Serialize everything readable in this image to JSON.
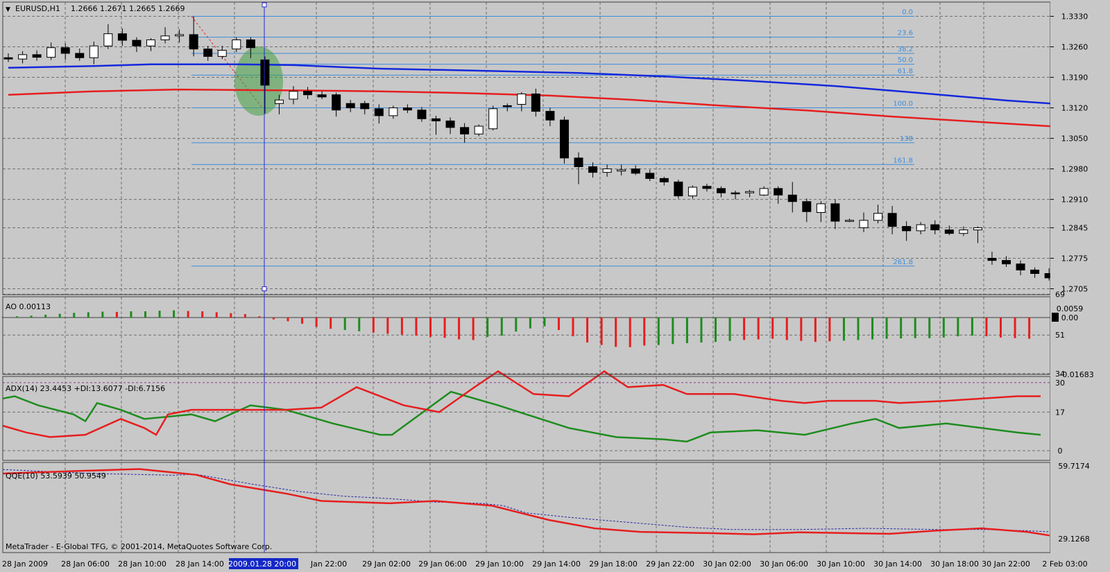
{
  "header": {
    "symbol": "EURUSD,H1",
    "ohlc": "1.2666 1.2671 1.2665 1.2669"
  },
  "colors": {
    "bg": "#c8c8c8",
    "grid": "#6e6e6e",
    "bull": "#ffffff",
    "bear": "#000000",
    "ma_slow": "#1428dc",
    "ma_fast": "#e61e1e",
    "fib": "#3c8cdc",
    "ao_up": "#1e8c1e",
    "ao_down": "#e61e1e",
    "adx_di_plus": "#1e8c1e",
    "adx_di_minus": "#e61e1e",
    "cursor": "#2828c8",
    "highlight": "#46a046"
  },
  "main": {
    "y_ticks": [
      "1.3330",
      "1.3260",
      "1.3190",
      "1.3120",
      "1.3050",
      "1.2980",
      "1.2910",
      "1.2845",
      "1.2775",
      "1.2705"
    ],
    "fib_labels": [
      "0.0",
      "23.6",
      "38.2",
      "50.0",
      "61.8",
      "100.0",
      "138",
      "161.8",
      "261.8"
    ],
    "candles": [
      [
        1.3235,
        1.3245,
        1.3225,
        1.3232
      ],
      [
        1.3232,
        1.325,
        1.3222,
        1.3242
      ],
      [
        1.3242,
        1.3252,
        1.3228,
        1.3236
      ],
      [
        1.3236,
        1.327,
        1.323,
        1.3258
      ],
      [
        1.3258,
        1.3268,
        1.323,
        1.3245
      ],
      [
        1.3245,
        1.3256,
        1.3228,
        1.3235
      ],
      [
        1.3235,
        1.3272,
        1.322,
        1.3262
      ],
      [
        1.3262,
        1.3312,
        1.3255,
        1.329
      ],
      [
        1.329,
        1.3302,
        1.3262,
        1.3275
      ],
      [
        1.3275,
        1.3282,
        1.3248,
        1.3262
      ],
      [
        1.3262,
        1.328,
        1.325,
        1.3276
      ],
      [
        1.3276,
        1.3305,
        1.3268,
        1.3285
      ],
      [
        1.3285,
        1.33,
        1.327,
        1.3288
      ],
      [
        1.3288,
        1.333,
        1.3238,
        1.3255
      ],
      [
        1.3255,
        1.3262,
        1.3228,
        1.3238
      ],
      [
        1.3238,
        1.3262,
        1.3232,
        1.3252
      ],
      [
        1.3255,
        1.3282,
        1.3248,
        1.3276
      ],
      [
        1.3276,
        1.3282,
        1.3234,
        1.3258
      ],
      [
        1.323,
        1.3238,
        1.3107,
        1.3172
      ],
      [
        1.313,
        1.315,
        1.3105,
        1.3138
      ],
      [
        1.314,
        1.317,
        1.3128,
        1.3158
      ],
      [
        1.3158,
        1.3168,
        1.314,
        1.315
      ],
      [
        1.315,
        1.3158,
        1.314,
        1.3145
      ],
      [
        1.315,
        1.3155,
        1.31,
        1.3115
      ],
      [
        1.313,
        1.3138,
        1.311,
        1.312
      ],
      [
        1.313,
        1.3136,
        1.3105,
        1.3118
      ],
      [
        1.3118,
        1.3128,
        1.3084,
        1.3102
      ],
      [
        1.3102,
        1.3125,
        1.3095,
        1.312
      ],
      [
        1.312,
        1.3128,
        1.3108,
        1.3115
      ],
      [
        1.3115,
        1.3122,
        1.3088,
        1.3095
      ],
      [
        1.3095,
        1.3102,
        1.3058,
        1.309
      ],
      [
        1.309,
        1.3098,
        1.306,
        1.3075
      ],
      [
        1.3075,
        1.3085,
        1.304,
        1.306
      ],
      [
        1.306,
        1.3082,
        1.3055,
        1.3078
      ],
      [
        1.3072,
        1.3125,
        1.3068,
        1.3118
      ],
      [
        1.3125,
        1.313,
        1.3112,
        1.3124
      ],
      [
        1.3128,
        1.3156,
        1.3112,
        1.3152
      ],
      [
        1.3152,
        1.3164,
        1.31,
        1.3112
      ],
      [
        1.3112,
        1.312,
        1.3078,
        1.3092
      ],
      [
        1.3092,
        1.31,
        1.2992,
        1.3005
      ],
      [
        1.3005,
        1.3018,
        1.2945,
        1.2985
      ],
      [
        1.2985,
        1.2995,
        1.296,
        1.2972
      ],
      [
        1.2972,
        1.299,
        1.2962,
        1.298
      ],
      [
        1.2975,
        1.299,
        1.2965,
        1.2978
      ],
      [
        1.298,
        1.2988,
        1.2966,
        1.297
      ],
      [
        1.297,
        1.2978,
        1.2952,
        1.2958
      ],
      [
        1.2958,
        1.2962,
        1.2942,
        1.295
      ],
      [
        1.295,
        1.2955,
        1.2912,
        1.2918
      ],
      [
        1.2918,
        1.2942,
        1.2912,
        1.2938
      ],
      [
        1.294,
        1.2946,
        1.2928,
        1.2935
      ],
      [
        1.2935,
        1.294,
        1.2915,
        1.2925
      ],
      [
        1.2925,
        1.293,
        1.291,
        1.2924
      ],
      [
        1.2925,
        1.2932,
        1.2915,
        1.2928
      ],
      [
        1.292,
        1.294,
        1.2918,
        1.2935
      ],
      [
        1.2935,
        1.294,
        1.29,
        1.292
      ],
      [
        1.292,
        1.295,
        1.288,
        1.2905
      ],
      [
        1.2905,
        1.2912,
        1.2858,
        1.2882
      ],
      [
        1.288,
        1.2906,
        1.2858,
        1.29
      ],
      [
        1.29,
        1.291,
        1.2842,
        1.286
      ],
      [
        1.286,
        1.2866,
        1.2858,
        1.2862
      ],
      [
        1.2845,
        1.288,
        1.2835,
        1.2862
      ],
      [
        1.2862,
        1.2898,
        1.2855,
        1.2878
      ],
      [
        1.2878,
        1.2895,
        1.283,
        1.2848
      ],
      [
        1.2848,
        1.286,
        1.2815,
        1.2838
      ],
      [
        1.2838,
        1.2858,
        1.283,
        1.2852
      ],
      [
        1.2852,
        1.2862,
        1.283,
        1.284
      ],
      [
        1.284,
        1.285,
        1.2828,
        1.2832
      ],
      [
        1.2832,
        1.2848,
        1.2826,
        1.284
      ],
      [
        1.284,
        1.2848,
        1.281,
        1.2845
      ],
      [
        1.2775,
        1.279,
        1.276,
        1.277
      ],
      [
        1.277,
        1.278,
        1.2755,
        1.2762
      ],
      [
        1.2762,
        1.277,
        1.2736,
        1.2748
      ],
      [
        1.2748,
        1.2754,
        1.273,
        1.274
      ],
      [
        1.274,
        1.2752,
        1.2724,
        1.273
      ]
    ],
    "ma_slow": [
      [
        0,
        1.3212
      ],
      [
        6,
        1.3216
      ],
      [
        10,
        1.322
      ],
      [
        16,
        1.322
      ],
      [
        20,
        1.3218
      ],
      [
        26,
        1.321
      ],
      [
        32,
        1.3206
      ],
      [
        40,
        1.32
      ],
      [
        46,
        1.3192
      ],
      [
        52,
        1.3182
      ],
      [
        58,
        1.317
      ],
      [
        64,
        1.3154
      ],
      [
        70,
        1.3137
      ],
      [
        74,
        1.3128
      ]
    ],
    "ma_fast": [
      [
        0,
        1.315
      ],
      [
        6,
        1.3158
      ],
      [
        12,
        1.3162
      ],
      [
        20,
        1.316
      ],
      [
        26,
        1.3158
      ],
      [
        32,
        1.3154
      ],
      [
        38,
        1.3148
      ],
      [
        44,
        1.3138
      ],
      [
        50,
        1.3125
      ],
      [
        56,
        1.3114
      ],
      [
        62,
        1.31
      ],
      [
        68,
        1.3088
      ],
      [
        74,
        1.3076
      ]
    ]
  },
  "ao": {
    "label": "AO 0.00113",
    "y_top": "0.0059",
    "y_zero": "0.00",
    "y_bottom": "-0.01683",
    "values": [
      0.0002,
      0.0004,
      0.0006,
      0.0009,
      0.0012,
      0.0015,
      0.0017,
      0.0019,
      0.0018,
      0.002,
      0.002,
      0.0022,
      0.0023,
      0.0021,
      0.002,
      0.0017,
      0.0014,
      0.0011,
      0.0004,
      -0.0006,
      -0.0012,
      -0.002,
      -0.003,
      -0.0036,
      -0.004,
      -0.0044,
      -0.0048,
      -0.0052,
      -0.0055,
      -0.0058,
      -0.0062,
      -0.0065,
      -0.007,
      -0.0072,
      -0.0062,
      -0.0058,
      -0.0045,
      -0.0035,
      -0.0028,
      -0.004,
      -0.006,
      -0.008,
      -0.0088,
      -0.0094,
      -0.0095,
      -0.009,
      -0.0088,
      -0.0085,
      -0.0082,
      -0.008,
      -0.0078,
      -0.0075,
      -0.0072,
      -0.007,
      -0.0068,
      -0.0072,
      -0.0075,
      -0.0078,
      -0.0076,
      -0.0074,
      -0.0072,
      -0.007,
      -0.0068,
      -0.0067,
      -0.0066,
      -0.0066,
      -0.0064,
      -0.006,
      -0.0058,
      -0.006,
      -0.0064,
      -0.0066,
      -0.0068
    ],
    "colors": [
      "g",
      "g",
      "g",
      "g",
      "g",
      "g",
      "g",
      "g",
      "r",
      "g",
      "g",
      "g",
      "g",
      "r",
      "r",
      "r",
      "r",
      "r",
      "r",
      "r",
      "r",
      "r",
      "r",
      "r",
      "g",
      "g",
      "r",
      "r",
      "r",
      "r",
      "r",
      "r",
      "r",
      "r",
      "g",
      "g",
      "g",
      "g",
      "g",
      "r",
      "r",
      "r",
      "r",
      "r",
      "r",
      "r",
      "g",
      "g",
      "g",
      "g",
      "g",
      "g",
      "r",
      "r",
      "r",
      "r",
      "r",
      "r",
      "r",
      "g",
      "g",
      "g",
      "g",
      "g",
      "g",
      "g",
      "g",
      "g",
      "g",
      "r",
      "r",
      "r",
      "r"
    ]
  },
  "adx": {
    "label": "ADX(14) 23.4453 +DI:13.6077 -DI:6.7156",
    "y_ticks": [
      "69",
      "51",
      "34",
      "30",
      "17",
      "0"
    ],
    "green": [
      [
        0,
        23
      ],
      [
        1,
        24
      ],
      [
        3,
        20
      ],
      [
        6,
        16
      ],
      [
        7,
        13
      ],
      [
        8,
        21
      ],
      [
        10,
        18
      ],
      [
        12,
        14
      ],
      [
        16,
        16
      ],
      [
        18,
        13
      ],
      [
        21,
        20
      ],
      [
        24,
        18
      ],
      [
        28,
        12
      ],
      [
        32,
        7
      ],
      [
        33,
        7
      ],
      [
        38,
        26
      ],
      [
        42,
        20
      ],
      [
        48,
        10
      ],
      [
        52,
        6
      ],
      [
        56,
        5
      ],
      [
        58,
        4
      ],
      [
        60,
        8
      ],
      [
        64,
        9
      ],
      [
        68,
        7
      ],
      [
        72,
        12
      ],
      [
        74,
        14
      ],
      [
        76,
        10
      ],
      [
        80,
        12
      ],
      [
        86,
        8
      ],
      [
        88,
        7
      ]
    ],
    "red": [
      [
        0,
        11
      ],
      [
        2,
        8
      ],
      [
        4,
        6
      ],
      [
        7,
        7
      ],
      [
        10,
        14
      ],
      [
        12,
        10
      ],
      [
        13,
        7
      ],
      [
        14,
        16
      ],
      [
        16,
        18
      ],
      [
        20,
        18
      ],
      [
        22,
        18
      ],
      [
        24,
        18
      ],
      [
        27,
        19
      ],
      [
        30,
        28
      ],
      [
        34,
        20
      ],
      [
        37,
        17
      ],
      [
        40,
        28
      ],
      [
        42,
        35
      ],
      [
        45,
        25
      ],
      [
        48,
        24
      ],
      [
        51,
        35
      ],
      [
        53,
        28
      ],
      [
        56,
        29
      ],
      [
        58,
        25
      ],
      [
        62,
        25
      ],
      [
        66,
        22
      ],
      [
        68,
        21
      ],
      [
        70,
        22
      ],
      [
        74,
        22
      ],
      [
        76,
        21
      ],
      [
        80,
        22
      ],
      [
        86,
        24
      ],
      [
        88,
        24
      ]
    ]
  },
  "qqe": {
    "label": "QQE(10) 53.5939 50.9549",
    "y_top": "59.7174",
    "y_bottom": "29.1268",
    "red": [
      [
        0,
        56.5
      ],
      [
        6,
        57.5
      ],
      [
        12,
        58.4
      ],
      [
        17,
        56.0
      ],
      [
        20,
        52.0
      ],
      [
        25,
        48.0
      ],
      [
        28,
        45.0
      ],
      [
        34,
        44.0
      ],
      [
        38,
        45.0
      ],
      [
        43,
        43.0
      ],
      [
        48,
        37.0
      ],
      [
        52,
        33.5
      ],
      [
        56,
        32.0
      ],
      [
        62,
        31.5
      ],
      [
        66,
        31.0
      ],
      [
        70,
        31.8
      ],
      [
        74,
        31.5
      ],
      [
        78,
        31.2
      ],
      [
        82,
        32.5
      ],
      [
        86,
        33.5
      ],
      [
        90,
        32.0
      ],
      [
        92,
        30.5
      ]
    ],
    "blue": [
      [
        0,
        58.2
      ],
      [
        8,
        56.5
      ],
      [
        15,
        55.8
      ],
      [
        17,
        56.2
      ],
      [
        19,
        54.5
      ],
      [
        22,
        52.0
      ],
      [
        26,
        49.0
      ],
      [
        30,
        47.0
      ],
      [
        34,
        46.0
      ],
      [
        38,
        44.5
      ],
      [
        42,
        44.0
      ],
      [
        44,
        43.0
      ],
      [
        46,
        40.0
      ],
      [
        50,
        38.0
      ],
      [
        55,
        36.0
      ],
      [
        60,
        34.0
      ],
      [
        64,
        33.0
      ],
      [
        70,
        33.0
      ],
      [
        76,
        33.5
      ],
      [
        82,
        33.0
      ],
      [
        86,
        33.0
      ],
      [
        90,
        32.5
      ],
      [
        92,
        32.0
      ]
    ]
  },
  "x_labels": [
    "28 Jan 2009",
    "28 Jan 06:00",
    "28 Jan 10:00",
    "28 Jan 14:00",
    "2009.01.28 20:00",
    "Jan 22:00",
    "29 Jan 02:00",
    "29 Jan 06:00",
    "29 Jan 10:00",
    "29 Jan 14:00",
    "29 Jan 18:00",
    "29 Jan 22:00",
    "30 Jan 02:00",
    "30 Jan 06:00",
    "30 Jan 10:00",
    "30 Jan 14:00",
    "30 Jan 18:00",
    "30 Jan 22:00",
    "2 Feb 03:00"
  ],
  "footer": "MetaTrader - E-Global TFG, © 2001-2014, MetaQuotes Software Corp."
}
